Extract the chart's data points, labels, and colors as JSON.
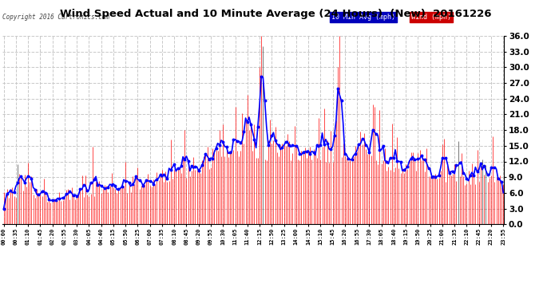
{
  "title": "Wind Speed Actual and 10 Minute Average (24 Hours)  (New)  20161226",
  "copyright": "Copyright 2016 Cartronics.com",
  "legend_label_avg": "10 Min Avg (mph)",
  "legend_label_wind": "Wind (mph)",
  "yticks": [
    0.0,
    3.0,
    6.0,
    9.0,
    12.0,
    15.0,
    18.0,
    21.0,
    24.0,
    27.0,
    30.0,
    33.0,
    36.0
  ],
  "ylim": [
    0.0,
    36.0
  ],
  "bg_color": "#ffffff",
  "plot_bg": "#ffffff",
  "grid_color": "#c8c8c8",
  "wind_color": "#ff0000",
  "dark_color": "#404040",
  "avg_color": "#0000ff",
  "n_points": 288,
  "seed": 99,
  "tick_interval": 7
}
